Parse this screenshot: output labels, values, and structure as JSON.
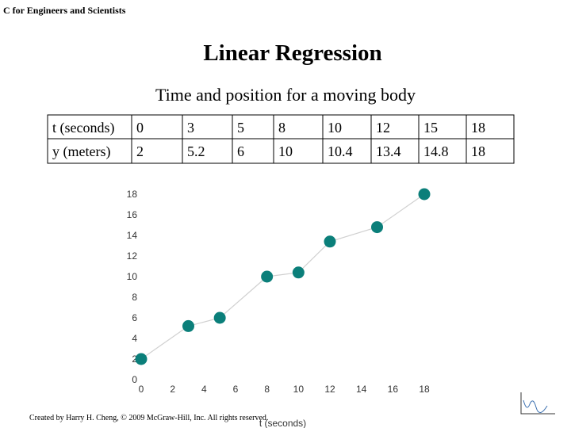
{
  "header": {
    "course": "C for Engineers and Scientists"
  },
  "title": "Linear Regression",
  "subtitle": "Time and position for a moving body",
  "table": {
    "rows": [
      [
        "t (seconds)",
        "0",
        "3",
        "5",
        "8",
        "10",
        "12",
        "15",
        "18"
      ],
      [
        "y (meters)",
        "2",
        "5.2",
        "6",
        "10",
        "10.4",
        "13.4",
        "14.8",
        "18"
      ]
    ]
  },
  "chart_data": {
    "type": "line",
    "x": [
      0,
      3,
      5,
      8,
      10,
      12,
      15,
      18
    ],
    "series": [
      {
        "color": "#0b7f7a",
        "line_color": "#d0d0d0",
        "values": [
          2,
          5.2,
          6,
          10,
          10.4,
          13.4,
          14.8,
          18
        ]
      }
    ],
    "xlabel": "t (seconds)",
    "xlim": [
      0,
      18
    ],
    "xticks": [
      0,
      2,
      4,
      6,
      8,
      10,
      12,
      14,
      16,
      18
    ],
    "ylim": [
      0,
      18
    ],
    "yticks": [
      0,
      2,
      4,
      6,
      8,
      10,
      12,
      14,
      16,
      18
    ]
  },
  "footer": "Created by Harry H. Cheng, © 2009 McGraw-Hill, Inc. All rights reserved."
}
